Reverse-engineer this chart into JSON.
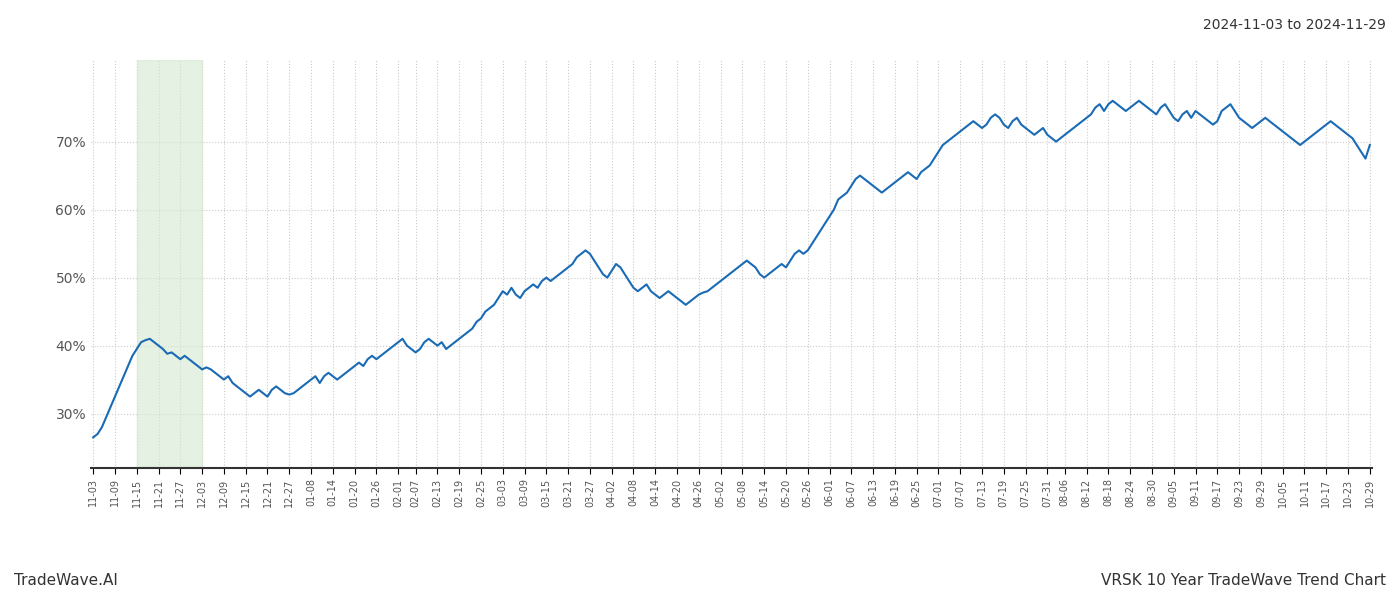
{
  "title_top_right": "2024-11-03 to 2024-11-29",
  "title_bottom_left": "TradeWave.AI",
  "title_bottom_right": "VRSK 10 Year TradeWave Trend Chart",
  "line_color": "#1a6bb5",
  "line_width": 1.5,
  "shading_color": "#d4e8d0",
  "shading_alpha": 0.6,
  "background_color": "#ffffff",
  "grid_color": "#cccccc",
  "yticks": [
    30,
    40,
    50,
    60,
    70
  ],
  "ylim": [
    22,
    82
  ],
  "shading_xstart_label": "11-15",
  "shading_xend_label": "12-03",
  "x_labels": [
    "11-03",
    "11-09",
    "11-15",
    "11-21",
    "11-27",
    "12-03",
    "12-09",
    "12-15",
    "12-21",
    "12-27",
    "01-08",
    "01-14",
    "01-20",
    "01-26",
    "02-01",
    "02-07",
    "02-13",
    "02-19",
    "02-25",
    "03-03",
    "03-09",
    "03-15",
    "03-21",
    "03-27",
    "04-02",
    "04-08",
    "04-14",
    "04-20",
    "04-26",
    "05-02",
    "05-08",
    "05-14",
    "05-20",
    "05-26",
    "06-01",
    "06-07",
    "06-13",
    "06-19",
    "06-25",
    "07-01",
    "07-07",
    "07-13",
    "07-19",
    "07-25",
    "07-31",
    "08-06",
    "08-12",
    "08-18",
    "08-24",
    "08-30",
    "09-05",
    "09-11",
    "09-17",
    "09-23",
    "09-29",
    "10-05",
    "10-11",
    "10-17",
    "10-23",
    "10-29"
  ],
  "y_values": [
    26.5,
    27.0,
    28.0,
    29.5,
    31.0,
    32.5,
    34.0,
    35.5,
    37.0,
    38.5,
    39.5,
    40.5,
    40.8,
    41.0,
    40.5,
    40.0,
    39.5,
    38.8,
    39.0,
    38.5,
    38.0,
    38.5,
    38.0,
    37.5,
    37.0,
    36.5,
    36.8,
    36.5,
    36.0,
    35.5,
    35.0,
    35.5,
    34.5,
    34.0,
    33.5,
    33.0,
    32.5,
    33.0,
    33.5,
    33.0,
    32.5,
    33.5,
    34.0,
    33.5,
    33.0,
    32.8,
    33.0,
    33.5,
    34.0,
    34.5,
    35.0,
    35.5,
    34.5,
    35.5,
    36.0,
    35.5,
    35.0,
    35.5,
    36.0,
    36.5,
    37.0,
    37.5,
    37.0,
    38.0,
    38.5,
    38.0,
    38.5,
    39.0,
    39.5,
    40.0,
    40.5,
    41.0,
    40.0,
    39.5,
    39.0,
    39.5,
    40.5,
    41.0,
    40.5,
    40.0,
    40.5,
    39.5,
    40.0,
    40.5,
    41.0,
    41.5,
    42.0,
    42.5,
    43.5,
    44.0,
    45.0,
    45.5,
    46.0,
    47.0,
    48.0,
    47.5,
    48.5,
    47.5,
    47.0,
    48.0,
    48.5,
    49.0,
    48.5,
    49.5,
    50.0,
    49.5,
    50.0,
    50.5,
    51.0,
    51.5,
    52.0,
    53.0,
    53.5,
    54.0,
    53.5,
    52.5,
    51.5,
    50.5,
    50.0,
    51.0,
    52.0,
    51.5,
    50.5,
    49.5,
    48.5,
    48.0,
    48.5,
    49.0,
    48.0,
    47.5,
    47.0,
    47.5,
    48.0,
    47.5,
    47.0,
    46.5,
    46.0,
    46.5,
    47.0,
    47.5,
    47.8,
    48.0,
    48.5,
    49.0,
    49.5,
    50.0,
    50.5,
    51.0,
    51.5,
    52.0,
    52.5,
    52.0,
    51.5,
    50.5,
    50.0,
    50.5,
    51.0,
    51.5,
    52.0,
    51.5,
    52.5,
    53.5,
    54.0,
    53.5,
    54.0,
    55.0,
    56.0,
    57.0,
    58.0,
    59.0,
    60.0,
    61.5,
    62.0,
    62.5,
    63.5,
    64.5,
    65.0,
    64.5,
    64.0,
    63.5,
    63.0,
    62.5,
    63.0,
    63.5,
    64.0,
    64.5,
    65.0,
    65.5,
    65.0,
    64.5,
    65.5,
    66.0,
    66.5,
    67.5,
    68.5,
    69.5,
    70.0,
    70.5,
    71.0,
    71.5,
    72.0,
    72.5,
    73.0,
    72.5,
    72.0,
    72.5,
    73.5,
    74.0,
    73.5,
    72.5,
    72.0,
    73.0,
    73.5,
    72.5,
    72.0,
    71.5,
    71.0,
    71.5,
    72.0,
    71.0,
    70.5,
    70.0,
    70.5,
    71.0,
    71.5,
    72.0,
    72.5,
    73.0,
    73.5,
    74.0,
    75.0,
    75.5,
    74.5,
    75.5,
    76.0,
    75.5,
    75.0,
    74.5,
    75.0,
    75.5,
    76.0,
    75.5,
    75.0,
    74.5,
    74.0,
    75.0,
    75.5,
    74.5,
    73.5,
    73.0,
    74.0,
    74.5,
    73.5,
    74.5,
    74.0,
    73.5,
    73.0,
    72.5,
    73.0,
    74.5,
    75.0,
    75.5,
    74.5,
    73.5,
    73.0,
    72.5,
    72.0,
    72.5,
    73.0,
    73.5,
    73.0,
    72.5,
    72.0,
    71.5,
    71.0,
    70.5,
    70.0,
    69.5,
    70.0,
    70.5,
    71.0,
    71.5,
    72.0,
    72.5,
    73.0,
    72.5,
    72.0,
    71.5,
    71.0,
    70.5,
    69.5,
    68.5,
    67.5,
    69.5
  ]
}
